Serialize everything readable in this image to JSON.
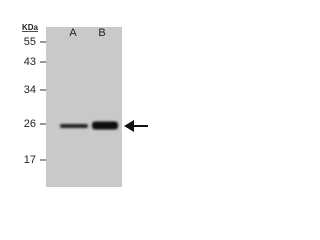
{
  "unit_label": "KDa",
  "markers": [
    55,
    43,
    34,
    26,
    17
  ],
  "lanes": [
    "A",
    "B"
  ]
}
